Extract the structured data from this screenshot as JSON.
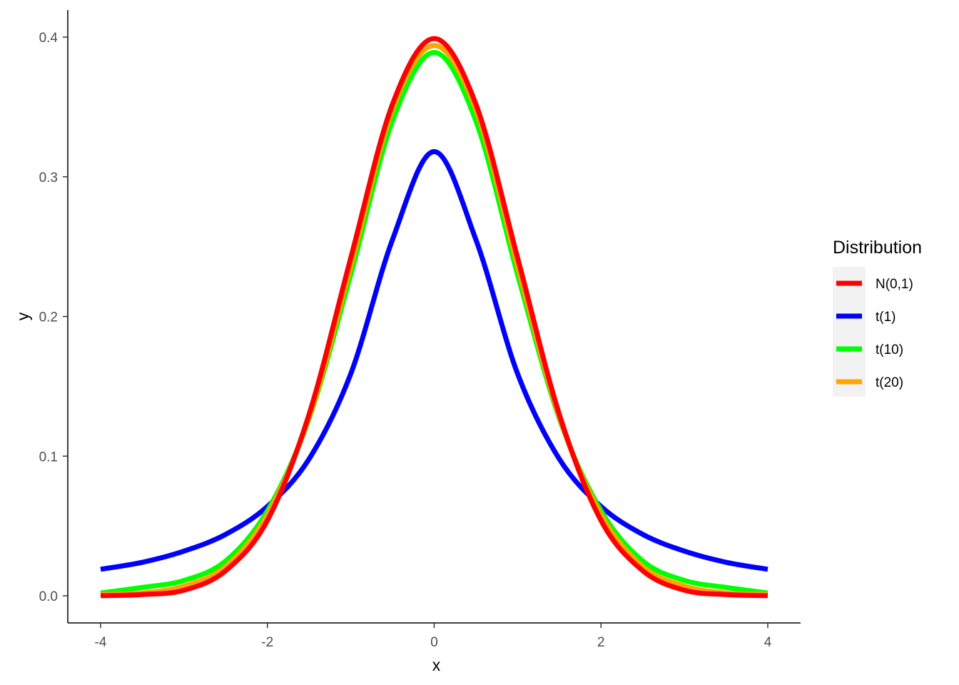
{
  "chart_data": {
    "type": "line",
    "title": "",
    "xlabel": "x",
    "ylabel": "y",
    "xlim": [
      -4,
      4
    ],
    "ylim": [
      0,
      0.4
    ],
    "x_ticks": [
      -4,
      -2,
      0,
      2,
      4
    ],
    "x_tick_labels": [
      "-4",
      "-2",
      "0",
      "2",
      "4"
    ],
    "y_ticks": [
      0,
      0.1,
      0.2,
      0.3,
      0.4
    ],
    "y_tick_labels": [
      "0.0",
      "0.1",
      "0.2",
      "0.3",
      "0.4"
    ],
    "grid": false,
    "legend": {
      "title": "Distribution",
      "position": "right"
    },
    "x": [
      -4,
      -3.5,
      -3,
      -2.5,
      -2,
      -1.5,
      -1,
      -0.5,
      0,
      0.5,
      1,
      1.5,
      2,
      2.5,
      3,
      3.5,
      4
    ],
    "series": [
      {
        "name": "t(1)",
        "color": "#0000ff",
        "values": [
          0.019,
          0.024,
          0.032,
          0.044,
          0.064,
          0.098,
          0.159,
          0.255,
          0.318,
          0.255,
          0.159,
          0.098,
          0.064,
          0.044,
          0.032,
          0.024,
          0.019
        ]
      },
      {
        "name": "t(10)",
        "color": "#00ff00",
        "values": [
          0.002,
          0.006,
          0.011,
          0.025,
          0.061,
          0.127,
          0.23,
          0.34,
          0.389,
          0.34,
          0.23,
          0.127,
          0.061,
          0.025,
          0.011,
          0.006,
          0.002
        ]
      },
      {
        "name": "t(20)",
        "color": "#ffa500",
        "values": [
          0.001,
          0.002,
          0.007,
          0.021,
          0.058,
          0.128,
          0.236,
          0.348,
          0.394,
          0.348,
          0.236,
          0.128,
          0.058,
          0.021,
          0.007,
          0.002,
          0.001
        ]
      },
      {
        "name": "N(0,1)",
        "color": "#ff0000",
        "values": [
          0.0001,
          0.0009,
          0.004,
          0.018,
          0.054,
          0.13,
          0.242,
          0.352,
          0.399,
          0.352,
          0.242,
          0.13,
          0.054,
          0.018,
          0.004,
          0.0009,
          0.0001
        ]
      }
    ],
    "legend_order": [
      "N(0,1)",
      "t(1)",
      "t(10)",
      "t(20)"
    ]
  }
}
